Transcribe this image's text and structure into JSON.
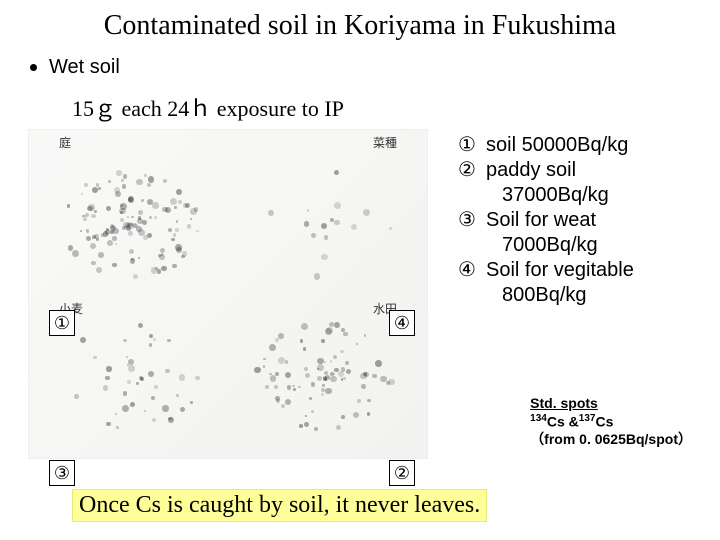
{
  "title": "Contaminated soil in Koriyama in Fukushima",
  "subtitle": "Wet soil",
  "exposure": "15ｇ each  24ｈ exposure to IP",
  "figure": {
    "jp_labels": {
      "tl": "庭",
      "tr": "菜種",
      "bl": "小麦",
      "br": "水田"
    },
    "circle_labels": {
      "tl": "①",
      "tr": "④",
      "bl": "③",
      "br": "②"
    },
    "densities": {
      "q1": 120,
      "q2": 85,
      "q3": 40,
      "q4": 15
    },
    "dot_color": "#444444"
  },
  "legend": {
    "items": [
      {
        "num": "①",
        "line1": "soil 50000Bq/kg"
      },
      {
        "num": "②",
        "line1": "paddy soil",
        "line2": "37000Bq/kg"
      },
      {
        "num": "③",
        "line1": "Soil for weat",
        "line2": "7000Bq/kg"
      },
      {
        "num": "④",
        "line1": "Soil for vegitable",
        "line2": "800Bq/kg"
      }
    ]
  },
  "std": {
    "line1": "Std. spots",
    "line2_pre": "134",
    "line2_mid": "Cs &",
    "line2_sup2": "137",
    "line2_end": "Cs",
    "line3": "（from 0. 0625Bq/spot）"
  },
  "footer": "Once Cs is caught by soil, it never leaves."
}
